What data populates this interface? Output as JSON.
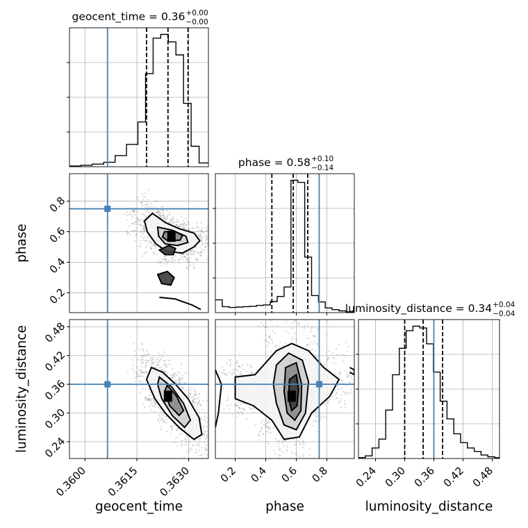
{
  "chart_data": {
    "type": "corner",
    "parameters": [
      "geocent_time",
      "phase",
      "luminosity_distance"
    ],
    "ranges": {
      "geocent_time": [
        0.35955,
        0.36357
      ],
      "phase": [
        0.07,
        0.98
      ],
      "luminosity_distance": [
        0.205,
        0.495
      ]
    },
    "truths": {
      "geocent_time": 0.36065,
      "phase": 0.75,
      "luminosity_distance": 0.36
    },
    "ticks": {
      "geocent_time": [
        "0.3600",
        "0.3615",
        "0.3630"
      ],
      "phase": [
        "0.2",
        "0.4",
        "0.6",
        "0.8"
      ],
      "luminosity_distance": [
        "0.24",
        "0.30",
        "0.36",
        "0.42",
        "0.48"
      ]
    },
    "tick_values": {
      "geocent_time": [
        0.36,
        0.3615,
        0.363
      ],
      "phase": [
        0.2,
        0.4,
        0.6,
        0.8
      ],
      "luminosity_distance": [
        0.24,
        0.3,
        0.36,
        0.42,
        0.48
      ]
    },
    "row_tick_labels": {
      "phase": [
        "0.2",
        "0.4",
        "0.6",
        "0.8"
      ],
      "luminosity_distance": [
        "0.24",
        "0.30",
        "0.36",
        "0.42",
        "0.48"
      ]
    },
    "marginals": [
      {
        "parameter": "geocent_time",
        "title_main": "geocent_time = 0.36",
        "title_plus": "+0.00",
        "title_minus": "−0.00",
        "quantiles": [
          0.36178,
          0.3624,
          0.36298
        ],
        "bin_edges": [
          0.35955,
          0.35988,
          0.36021,
          0.36054,
          0.36087,
          0.3612,
          0.36153,
          0.36175,
          0.36197,
          0.36219,
          0.36241,
          0.36263,
          0.36285,
          0.36307,
          0.3633,
          0.36357
        ],
        "values": [
          2,
          4,
          7,
          12,
          30,
          60,
          120,
          250,
          345,
          355,
          335,
          300,
          170,
          55,
          10
        ]
      },
      {
        "parameter": "phase",
        "title_main": "phase = 0.58",
        "title_plus": "+0.10",
        "title_minus": "−0.14",
        "quantiles": [
          0.44,
          0.58,
          0.675
        ],
        "bin_edges": [
          0.07,
          0.115,
          0.16,
          0.205,
          0.25,
          0.295,
          0.34,
          0.385,
          0.43,
          0.475,
          0.52,
          0.565,
          0.61,
          0.655,
          0.7,
          0.745,
          0.79,
          0.835,
          0.88,
          0.925,
          0.98
        ],
        "values": [
          30,
          14,
          12,
          13,
          14,
          15,
          17,
          18,
          26,
          38,
          60,
          310,
          305,
          130,
          40,
          25,
          11,
          7,
          4,
          2
        ]
      },
      {
        "parameter": "luminosity_distance",
        "title_main": "luminosity_distance = 0.34",
        "title_plus": "+0.04",
        "title_minus": "−0.04",
        "quantiles": [
          0.3,
          0.338,
          0.378
        ],
        "bin_edges": [
          0.205,
          0.219,
          0.233,
          0.247,
          0.261,
          0.275,
          0.289,
          0.303,
          0.317,
          0.331,
          0.345,
          0.359,
          0.373,
          0.387,
          0.401,
          0.415,
          0.429,
          0.443,
          0.457,
          0.471,
          0.485,
          0.495
        ],
        "values": [
          1,
          3,
          12,
          22,
          55,
          95,
          125,
          145,
          150,
          148,
          130,
          98,
          65,
          45,
          28,
          18,
          12,
          8,
          4,
          2,
          1
        ]
      }
    ],
    "joint": [
      {
        "x": "geocent_time",
        "y": "phase",
        "peak": {
          "x": 0.3625,
          "y": 0.57
        },
        "contours": [
          [
            [
              0.36195,
              0.72
            ],
            [
              0.36232,
              0.66
            ],
            [
              0.36272,
              0.62
            ],
            [
              0.36316,
              0.59
            ],
            [
              0.36332,
              0.54
            ],
            [
              0.36315,
              0.5
            ],
            [
              0.36282,
              0.46
            ],
            [
              0.36238,
              0.47
            ],
            [
              0.36205,
              0.52
            ],
            [
              0.3618,
              0.6
            ],
            [
              0.36172,
              0.67
            ]
          ],
          [
            [
              0.3621,
              0.63
            ],
            [
              0.36252,
              0.61
            ],
            [
              0.36292,
              0.57
            ],
            [
              0.36298,
              0.53
            ],
            [
              0.36268,
              0.51
            ],
            [
              0.36232,
              0.52
            ],
            [
              0.36213,
              0.57
            ]
          ],
          [
            [
              0.3623,
              0.6
            ],
            [
              0.36262,
              0.6
            ],
            [
              0.36282,
              0.575
            ],
            [
              0.36275,
              0.545
            ],
            [
              0.3624,
              0.54
            ],
            [
              0.36224,
              0.565
            ]
          ],
          [
            [
              0.36215,
              0.48
            ],
            [
              0.36232,
              0.45
            ],
            [
              0.36255,
              0.45
            ],
            [
              0.36262,
              0.49
            ],
            [
              0.36242,
              0.51
            ]
          ],
          [
            [
              0.3621,
              0.32
            ],
            [
              0.36222,
              0.26
            ],
            [
              0.36248,
              0.25
            ],
            [
              0.36258,
              0.3
            ],
            [
              0.36238,
              0.34
            ]
          ],
          [
            [
              0.36215,
              0.17
            ],
            [
              0.3626,
              0.16
            ],
            [
              0.3631,
              0.12
            ],
            [
              0.36335,
              0.09
            ]
          ]
        ]
      },
      {
        "x": "geocent_time",
        "y": "luminosity_distance",
        "peak": {
          "x": 0.3624,
          "y": 0.335
        },
        "contours": [
          [
            [
              0.36192,
              0.395
            ],
            [
              0.36225,
              0.385
            ],
            [
              0.36262,
              0.36
            ],
            [
              0.36298,
              0.33
            ],
            [
              0.3633,
              0.29
            ],
            [
              0.36338,
              0.255
            ],
            [
              0.36315,
              0.245
            ],
            [
              0.36272,
              0.27
            ],
            [
              0.36232,
              0.3
            ],
            [
              0.36202,
              0.33
            ],
            [
              0.36178,
              0.37
            ]
          ],
          [
            [
              0.36215,
              0.375
            ],
            [
              0.3625,
              0.355
            ],
            [
              0.36285,
              0.32
            ],
            [
              0.36305,
              0.285
            ],
            [
              0.36288,
              0.27
            ],
            [
              0.36252,
              0.295
            ],
            [
              0.36222,
              0.33
            ],
            [
              0.3621,
              0.36
            ]
          ],
          [
            [
              0.36238,
              0.358
            ],
            [
              0.36265,
              0.335
            ],
            [
              0.36285,
              0.305
            ],
            [
              0.36272,
              0.295
            ],
            [
              0.36245,
              0.315
            ],
            [
              0.3623,
              0.345
            ]
          ]
        ]
      },
      {
        "x": "phase",
        "y": "luminosity_distance",
        "peak": {
          "x": 0.57,
          "y": 0.335
        },
        "contours": [
          [
            [
              0.2,
              0.375
            ],
            [
              0.33,
              0.38
            ],
            [
              0.47,
              0.43
            ],
            [
              0.57,
              0.445
            ],
            [
              0.68,
              0.43
            ],
            [
              0.78,
              0.395
            ],
            [
              0.88,
              0.37
            ],
            [
              0.82,
              0.335
            ],
            [
              0.7,
              0.3
            ],
            [
              0.62,
              0.25
            ],
            [
              0.52,
              0.245
            ],
            [
              0.44,
              0.285
            ],
            [
              0.32,
              0.315
            ],
            [
              0.2,
              0.33
            ]
          ],
          [
            [
              0.47,
              0.4
            ],
            [
              0.55,
              0.425
            ],
            [
              0.64,
              0.41
            ],
            [
              0.68,
              0.365
            ],
            [
              0.66,
              0.3
            ],
            [
              0.6,
              0.265
            ],
            [
              0.52,
              0.275
            ],
            [
              0.47,
              0.32
            ],
            [
              0.45,
              0.36
            ]
          ],
          [
            [
              0.53,
              0.395
            ],
            [
              0.6,
              0.405
            ],
            [
              0.635,
              0.36
            ],
            [
              0.63,
              0.305
            ],
            [
              0.59,
              0.285
            ],
            [
              0.54,
              0.3
            ],
            [
              0.52,
              0.345
            ]
          ],
          [
            [
              0.555,
              0.37
            ],
            [
              0.6,
              0.38
            ],
            [
              0.615,
              0.35
            ],
            [
              0.605,
              0.315
            ],
            [
              0.57,
              0.305
            ],
            [
              0.55,
              0.33
            ]
          ],
          [
            [
              0.07,
              0.39
            ],
            [
              0.11,
              0.36
            ],
            [
              0.09,
              0.3
            ],
            [
              0.07,
              0.27
            ]
          ],
          [
            [
              0.95,
              0.395
            ],
            [
              0.98,
              0.39
            ],
            [
              0.98,
              0.38
            ],
            [
              0.95,
              0.385
            ]
          ]
        ]
      }
    ],
    "xlabels": [
      "geocent_time",
      "phase",
      "luminosity_distance"
    ],
    "ylabels": [
      "phase",
      "luminosity_distance"
    ],
    "colors": {
      "truth": "#4682b4",
      "grid": "#b0b0b0",
      "samples": "#888888"
    },
    "grid": true
  }
}
